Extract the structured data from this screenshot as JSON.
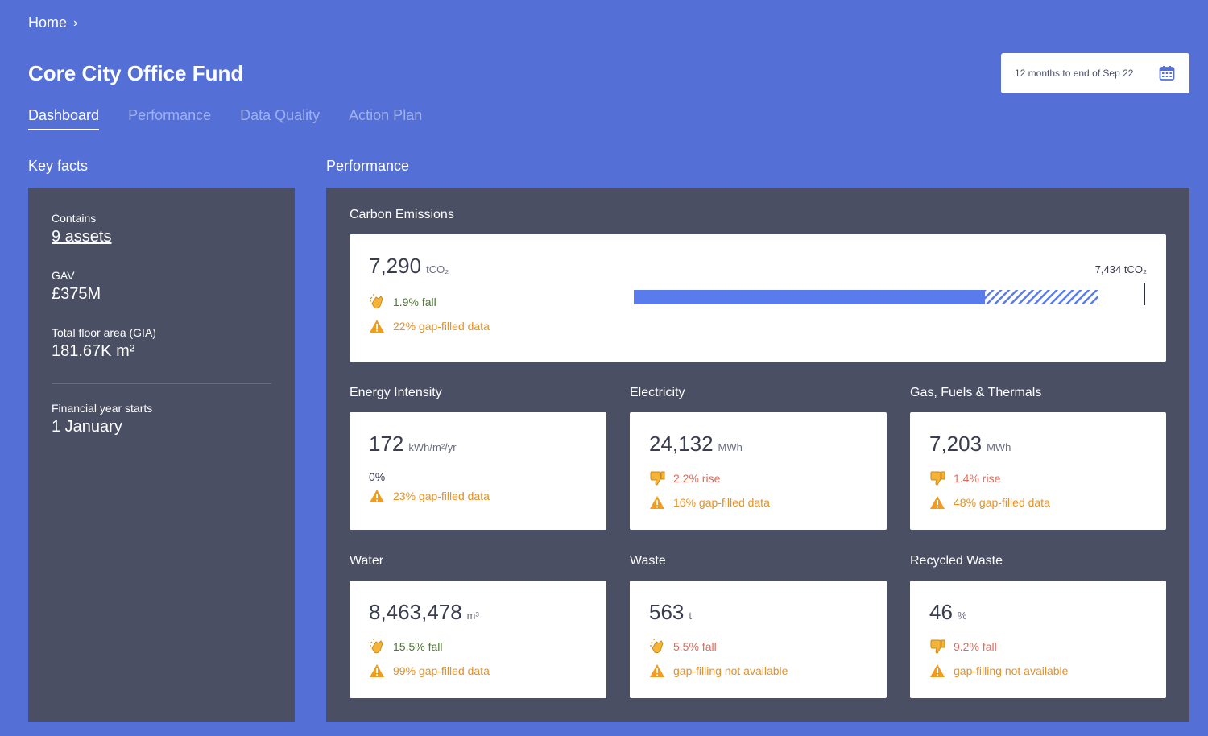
{
  "breadcrumb": {
    "home": "Home",
    "chevron": "›"
  },
  "page": {
    "title": "Core City Office Fund"
  },
  "date_range": {
    "label": "12 months to end of Sep 22",
    "icon": "calendar-icon"
  },
  "tabs": [
    {
      "label": "Dashboard",
      "active": true
    },
    {
      "label": "Performance",
      "active": false
    },
    {
      "label": "Data Quality",
      "active": false
    },
    {
      "label": "Action Plan",
      "active": false
    }
  ],
  "key_facts": {
    "title": "Key facts",
    "contains_label": "Contains",
    "contains_value": "9 assets",
    "gav_label": "GAV",
    "gav_value": "£375M",
    "floor_label": "Total floor area (GIA)",
    "floor_value": "181.67K m²",
    "fy_label": "Financial year starts",
    "fy_value": "1 January"
  },
  "performance": {
    "title": "Performance",
    "carbon": {
      "label": "Carbon Emissions",
      "value": "7,290",
      "unit": "tCO₂",
      "change": "1.9% fall",
      "gap": "22% gap-filled data",
      "target_label": "7,434 tCO₂",
      "actual_fraction": 0.685,
      "gapfill_fraction": 0.22
    },
    "energy": {
      "label": "Energy Intensity",
      "value": "172",
      "unit": "kWh/m²/yr",
      "change": "0%",
      "gap": "23% gap-filled data"
    },
    "electricity": {
      "label": "Electricity",
      "value": "24,132",
      "unit": "MWh",
      "change": "2.2% rise",
      "gap": "16% gap-filled data"
    },
    "gas": {
      "label": "Gas, Fuels & Thermals",
      "value": "7,203",
      "unit": "MWh",
      "change": "1.4% rise",
      "gap": "48% gap-filled data"
    },
    "water": {
      "label": "Water",
      "value": "8,463,478",
      "unit": "m³",
      "change": "15.5% fall",
      "gap": "99% gap-filled data"
    },
    "waste": {
      "label": "Waste",
      "value": "563",
      "unit": "t",
      "change": "5.5% fall",
      "gap": "gap-filling not available"
    },
    "recycled": {
      "label": "Recycled Waste",
      "value": "46",
      "unit": "%",
      "change": "9.2% fall",
      "gap": "gap-filling not available"
    }
  },
  "colors": {
    "bar": "#5a7bec",
    "good": "#4c7a2e",
    "bad": "#e26a5a",
    "warn": "#e89020"
  }
}
